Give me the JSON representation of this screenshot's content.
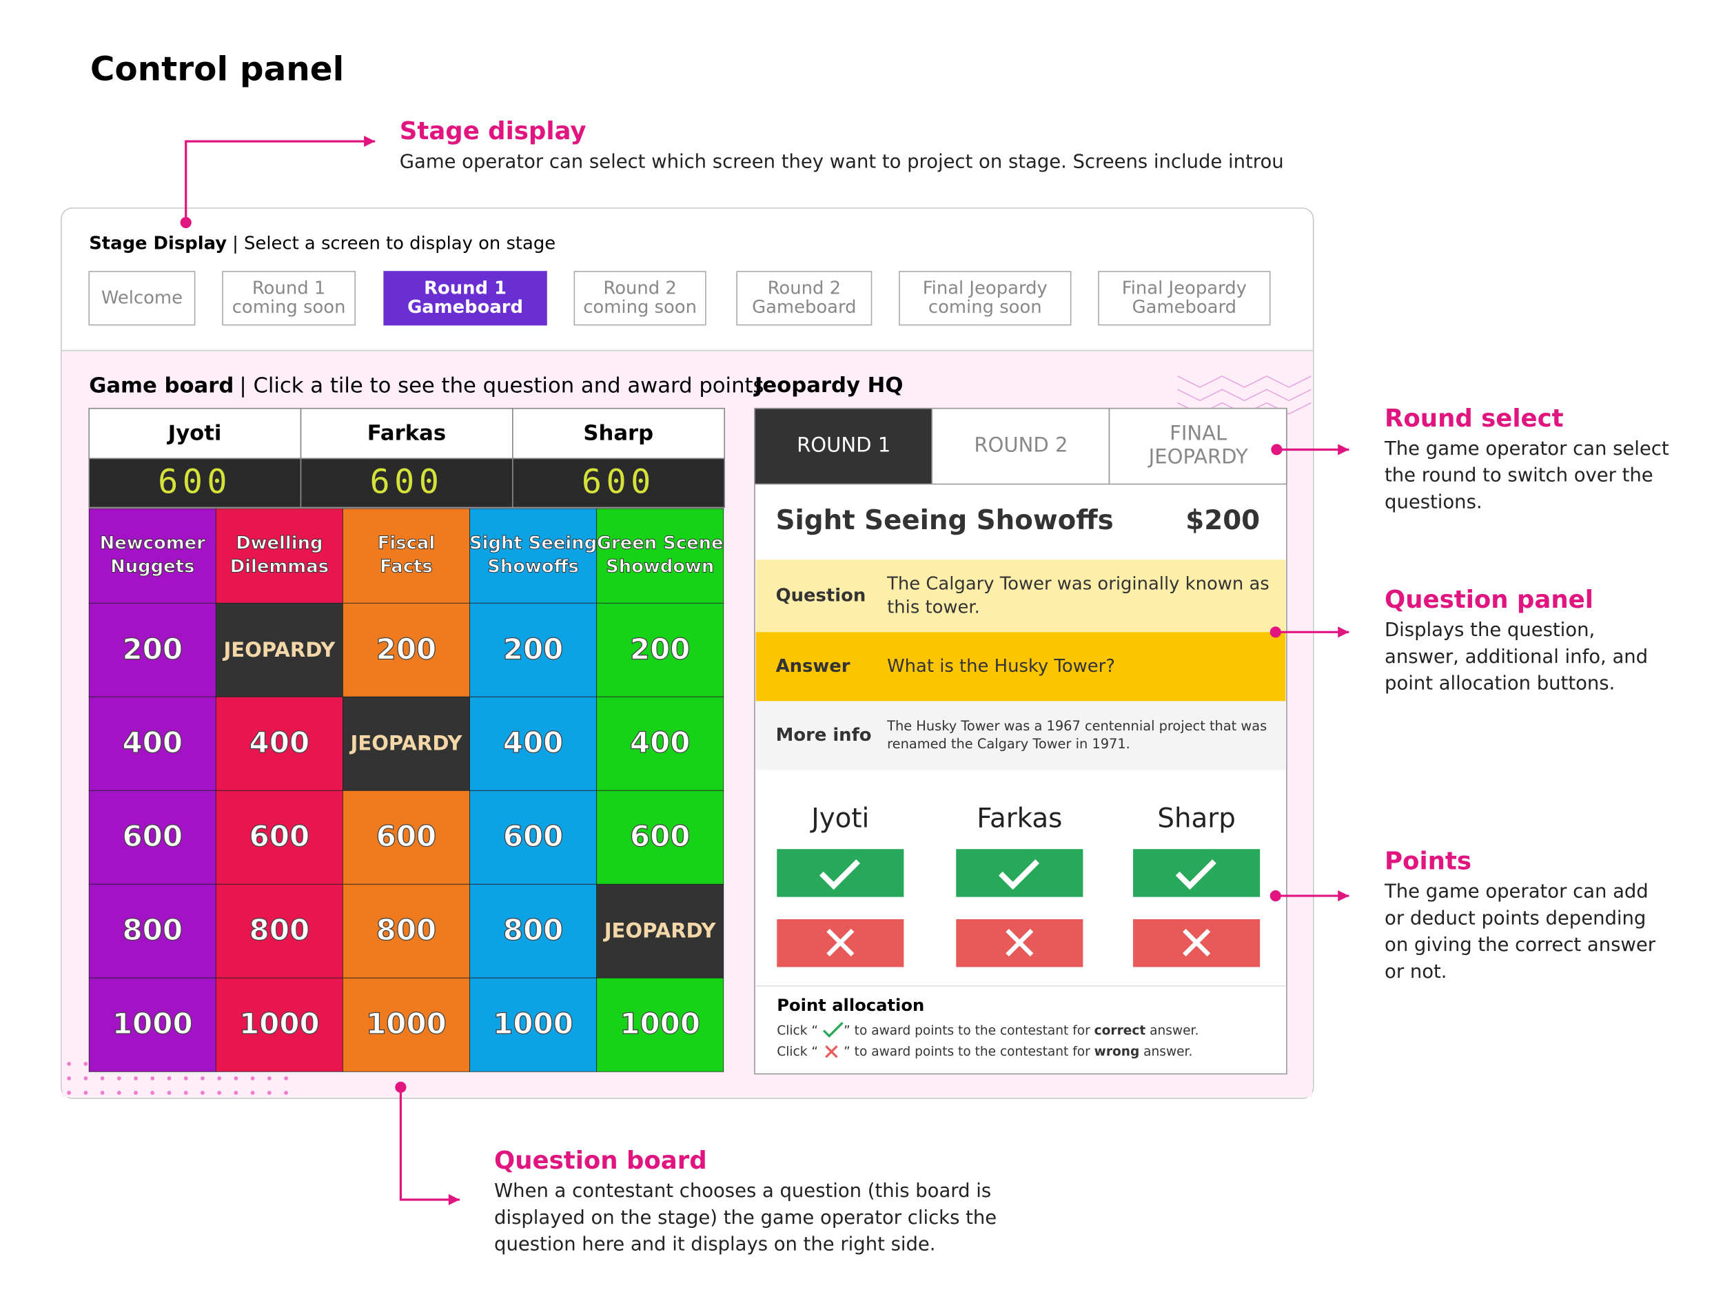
{
  "title": "Control panel",
  "annotations": [
    {
      "title": "Stage display",
      "lines": [
        "Game operator can select which screen they want to project on stage. Screens include introu"
      ]
    },
    {
      "title": "Round select",
      "lines": [
        "The game operator can select",
        "the round to switch over the",
        "questions."
      ]
    },
    {
      "title": "Question panel",
      "lines": [
        "Displays the question,",
        "answer, additional info, and",
        "point allocation buttons."
      ]
    },
    {
      "title": "Points",
      "lines": [
        "The game operator can add",
        "or deduct points depending",
        "on giving the correct answer",
        "or not."
      ]
    },
    {
      "title": "Question board",
      "lines": [
        "When a contestant chooses a question (this board is",
        "displayed on the stage) the game operator clicks the",
        "question here and it displays on the right side."
      ]
    }
  ],
  "stage_display": {
    "label": "Stage Display",
    "hint": "| Select a screen to display on stage",
    "selected": 2,
    "buttons": [
      [
        "Welcome"
      ],
      [
        "Round 1",
        "coming soon"
      ],
      [
        "Round 1",
        "Gameboard"
      ],
      [
        "Round 2",
        "coming soon"
      ],
      [
        "Round 2",
        "Gameboard"
      ],
      [
        "Final Jeopardy",
        "coming soon"
      ],
      [
        "Final Jeopardy",
        "Gameboard"
      ]
    ]
  },
  "game_board": {
    "label": "Game board",
    "hint": "| Click a tile to see the question and award points",
    "players": [
      {
        "name": "Jyoti",
        "score": 600
      },
      {
        "name": "Farkas",
        "score": 600
      },
      {
        "name": "Sharp",
        "score": 600
      }
    ],
    "categories": [
      {
        "name": [
          "Newcomer",
          "Nuggets"
        ],
        "color": "#a312c4"
      },
      {
        "name": [
          "Dwelling",
          "Dilemmas"
        ],
        "color": "#e8154f"
      },
      {
        "name": [
          "Fiscal",
          "Facts"
        ],
        "color": "#f07a1e"
      },
      {
        "name": [
          "Sight Seeing",
          "Showoffs"
        ],
        "color": "#0ba2e6"
      },
      {
        "name": [
          "Green Scene",
          "Showdown"
        ],
        "color": "#17d317"
      }
    ],
    "tiles": [
      [
        200,
        "JEOPARDY",
        200,
        200,
        200
      ],
      [
        400,
        400,
        "JEOPARDY",
        400,
        400
      ],
      [
        600,
        600,
        600,
        600,
        600
      ],
      [
        800,
        800,
        800,
        800,
        "JEOPARDY"
      ],
      [
        1000,
        1000,
        1000,
        1000,
        1000
      ]
    ]
  },
  "hq": {
    "label": "Jeopardy HQ",
    "tabs": [
      [
        "ROUND 1"
      ],
      [
        "ROUND 2"
      ],
      [
        "FINAL",
        "JEOPARDY"
      ]
    ],
    "selected_tab": 0,
    "category": "Sight Seeing Showoffs",
    "value": "$200",
    "rows": [
      {
        "label": "Question",
        "text": [
          "The Calgary Tower was originally known as",
          "this tower."
        ]
      },
      {
        "label": "Answer",
        "text": [
          "What is the Husky Tower?"
        ]
      },
      {
        "label": "More info",
        "text": [
          "The Husky Tower was a 1967 centennial project that was",
          "renamed the Calgary Tower in 1971."
        ]
      }
    ],
    "players": [
      "Jyoti",
      "Farkas",
      "Sharp"
    ],
    "allocation": {
      "title": "Point allocation",
      "lines": [
        {
          "before": "Click “",
          "after": "” to award points to the contestant for ",
          "bold": "correct",
          "end": " answer."
        },
        {
          "before": "Click “",
          "after": "” to award points to the contestant for ",
          "bold": "wrong",
          "end": " answer."
        }
      ]
    }
  }
}
